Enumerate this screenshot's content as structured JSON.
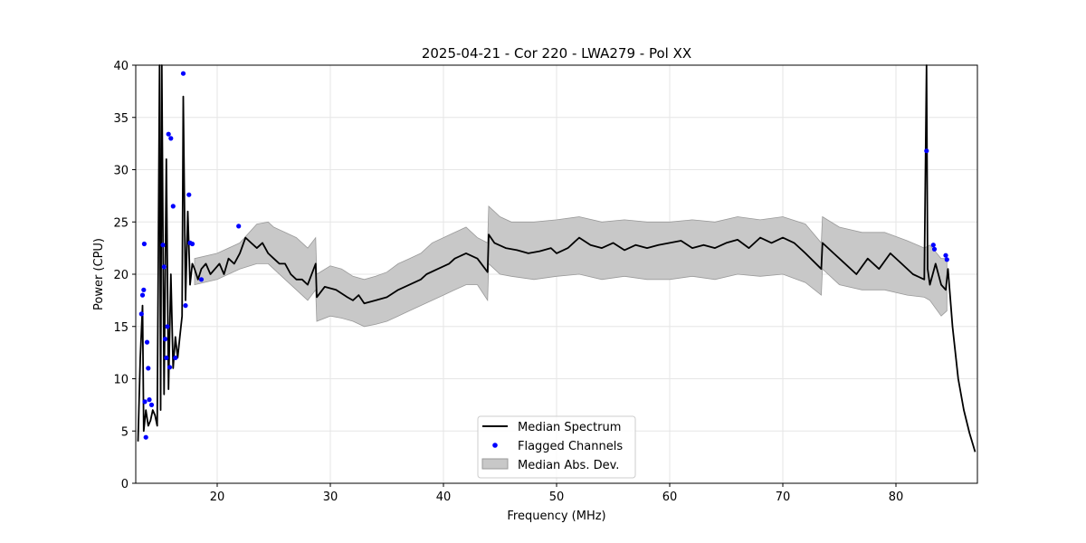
{
  "chart_data": {
    "type": "line",
    "title": "2025-04-21 - Cor 220 - LWA279 - Pol XX",
    "xlabel": "Frequency (MHz)",
    "ylabel": "Power (CPU)",
    "xlim": [
      12.8,
      87.2
    ],
    "ylim": [
      0,
      40
    ],
    "xticks": [
      "20",
      "30",
      "40",
      "50",
      "60",
      "70",
      "80"
    ],
    "yticks": [
      "0",
      "5",
      "10",
      "15",
      "20",
      "25",
      "30",
      "35",
      "40"
    ],
    "grid": true,
    "legend_position": "lower center",
    "colors": {
      "median": "#000000",
      "flagged": "#0000ff",
      "mad_fill": "#c8c8c8",
      "mad_edge": "#9a9a9a"
    },
    "series": [
      {
        "name": "Median Spectrum",
        "kind": "line",
        "x": [
          13.0,
          13.2,
          13.4,
          13.5,
          13.7,
          13.9,
          14.1,
          14.3,
          14.5,
          14.7,
          14.9,
          15.0,
          15.1,
          15.3,
          15.5,
          15.7,
          15.9,
          16.1,
          16.3,
          16.5,
          16.7,
          16.9,
          17.0,
          17.2,
          17.4,
          17.6,
          17.8,
          18.0,
          18.3,
          18.6,
          19.0,
          19.4,
          19.8,
          20.2,
          20.6,
          21.0,
          21.5,
          22.0,
          22.5,
          23.0,
          23.5,
          24.0,
          24.5,
          25.0,
          25.5,
          26.0,
          26.5,
          27.0,
          27.5,
          28.0,
          28.7,
          28.8,
          29.5,
          30.5,
          31.5,
          32.0,
          32.5,
          33.0,
          34.0,
          35.0,
          36.0,
          37.0,
          38.0,
          38.5,
          39.5,
          40.5,
          41.0,
          42.0,
          43.0,
          43.9,
          44.0,
          44.5,
          45.5,
          46.5,
          47.5,
          48.5,
          49.5,
          50.0,
          51.0,
          52.0,
          53.0,
          54.0,
          55.0,
          56.0,
          57.0,
          58.0,
          59.0,
          60.0,
          61.0,
          62.0,
          63.0,
          64.0,
          65.0,
          66.0,
          67.0,
          68.0,
          69.0,
          70.0,
          71.0,
          72.0,
          73.4,
          73.5,
          74.5,
          75.5,
          76.5,
          77.5,
          78.5,
          79.5,
          80.5,
          81.5,
          82.5,
          82.7,
          82.8,
          83.0,
          83.5,
          84.0,
          84.4,
          84.6,
          85.0,
          85.5,
          86.0,
          86.5,
          87.0
        ],
        "values": [
          4.0,
          12.0,
          17.0,
          5.0,
          7.0,
          5.5,
          6.0,
          7.0,
          6.5,
          5.5,
          40.0,
          7.0,
          40.0,
          8.5,
          31.0,
          9.0,
          20.0,
          11.0,
          14.0,
          12.0,
          14.0,
          16.0,
          37.0,
          17.5,
          26.0,
          19.0,
          21.0,
          20.5,
          19.5,
          20.5,
          21.0,
          20.0,
          20.5,
          21.0,
          20.0,
          21.5,
          21.0,
          22.0,
          23.5,
          23.0,
          22.5,
          23.0,
          22.0,
          21.5,
          21.0,
          21.0,
          20.0,
          19.5,
          19.5,
          19.0,
          21.0,
          17.8,
          18.8,
          18.5,
          17.8,
          17.5,
          18.0,
          17.2,
          17.5,
          17.8,
          18.5,
          19.0,
          19.5,
          20.0,
          20.5,
          21.0,
          21.5,
          22.0,
          21.5,
          20.2,
          23.8,
          23.0,
          22.5,
          22.3,
          22.0,
          22.2,
          22.5,
          22.0,
          22.5,
          23.5,
          22.8,
          22.5,
          23.0,
          22.3,
          22.8,
          22.5,
          22.8,
          23.0,
          23.2,
          22.5,
          22.8,
          22.5,
          23.0,
          23.3,
          22.5,
          23.5,
          23.0,
          23.5,
          23.0,
          22.0,
          20.5,
          23.0,
          22.0,
          21.0,
          20.0,
          21.5,
          20.5,
          22.0,
          21.0,
          20.0,
          19.5,
          40.0,
          20.5,
          19.0,
          21.0,
          19.0,
          18.5,
          20.5,
          15.0,
          10.0,
          7.0,
          4.8,
          3.0
        ]
      },
      {
        "name": "Flagged Channels",
        "kind": "scatter",
        "x": [
          13.3,
          13.4,
          13.5,
          13.55,
          13.6,
          13.7,
          13.8,
          13.9,
          14.0,
          14.2,
          15.2,
          15.3,
          15.4,
          15.5,
          15.6,
          15.7,
          15.8,
          15.9,
          16.1,
          16.3,
          17.0,
          17.2,
          17.5,
          17.6,
          17.8,
          18.6,
          21.9,
          82.7,
          83.3,
          83.4,
          84.4,
          84.5
        ],
        "values": [
          16.2,
          18.0,
          18.5,
          22.9,
          7.8,
          4.4,
          13.5,
          11.0,
          8.0,
          7.5,
          22.8,
          20.7,
          13.8,
          12.0,
          15.0,
          33.4,
          11.1,
          33.0,
          26.5,
          12.0,
          39.2,
          17.0,
          27.6,
          23.0,
          22.9,
          19.5,
          24.6,
          31.8,
          22.8,
          22.4,
          21.8,
          21.4
        ]
      },
      {
        "name": "Median Abs. Dev.",
        "kind": "band",
        "x": [
          18.0,
          20.0,
          22.0,
          23.5,
          24.5,
          25.0,
          26.0,
          27.0,
          28.0,
          28.7,
          28.8,
          30.0,
          31.0,
          32.0,
          33.0,
          34.0,
          35.0,
          36.0,
          37.0,
          38.0,
          39.0,
          40.0,
          41.0,
          42.0,
          43.0,
          43.9,
          44.0,
          45.0,
          46.0,
          48.0,
          50.0,
          52.0,
          54.0,
          56.0,
          58.0,
          60.0,
          62.0,
          64.0,
          66.0,
          68.0,
          70.0,
          72.0,
          73.4,
          73.5,
          75.0,
          77.0,
          79.0,
          81.0,
          82.5,
          83.0,
          84.0,
          84.5
        ],
        "upper": [
          21.5,
          22.0,
          23.0,
          24.8,
          25.0,
          24.5,
          24.0,
          23.5,
          22.5,
          23.5,
          20.0,
          20.8,
          20.5,
          19.8,
          19.5,
          19.8,
          20.2,
          21.0,
          21.5,
          22.0,
          23.0,
          23.5,
          24.0,
          24.5,
          23.5,
          23.0,
          26.5,
          25.5,
          25.0,
          25.0,
          25.2,
          25.5,
          25.0,
          25.2,
          25.0,
          25.0,
          25.2,
          25.0,
          25.5,
          25.2,
          25.5,
          24.8,
          23.0,
          25.5,
          24.5,
          24.0,
          24.0,
          23.2,
          22.5,
          22.8,
          21.5,
          21.5
        ],
        "lower": [
          19.0,
          19.5,
          20.5,
          21.0,
          21.0,
          20.5,
          19.5,
          18.5,
          17.5,
          18.5,
          15.5,
          16.0,
          15.8,
          15.5,
          15.0,
          15.2,
          15.5,
          16.0,
          16.5,
          17.0,
          17.5,
          18.0,
          18.5,
          19.0,
          19.0,
          17.5,
          21.0,
          20.0,
          19.8,
          19.5,
          19.8,
          20.0,
          19.5,
          19.8,
          19.5,
          19.5,
          19.8,
          19.5,
          20.0,
          19.8,
          20.0,
          19.2,
          18.0,
          20.5,
          19.0,
          18.5,
          18.5,
          18.0,
          17.8,
          17.5,
          16.0,
          16.5
        ]
      }
    ]
  },
  "legend": {
    "items": [
      {
        "label": "Median Spectrum"
      },
      {
        "label": "Flagged Channels"
      },
      {
        "label": "Median Abs. Dev."
      }
    ]
  }
}
